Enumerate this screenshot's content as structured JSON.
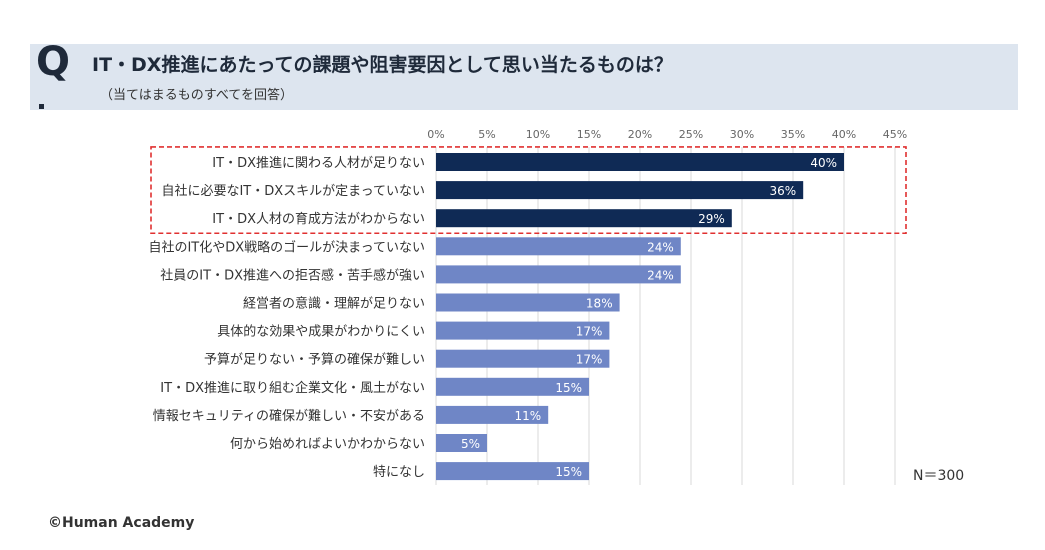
{
  "header": {
    "q_mark": "Q",
    "question": "IT・DX推進にあたっての課題や阻害要因として思い当たるものは？",
    "note": "（当てはまるものすべてを回答）"
  },
  "footer": {
    "sample_size": "N＝300",
    "copyright": "©Human Academy"
  },
  "colors": {
    "highlight_bar": "#0f2a55",
    "normal_bar": "#6f86c6",
    "highlight_border": "#e03030",
    "grid": "#d9d9d9"
  },
  "chart_data": {
    "type": "bar",
    "orientation": "horizontal",
    "title": "IT・DX推進にあたっての課題や阻害要因として思い当たるものは？",
    "xlabel": "",
    "ylabel": "",
    "xlim": [
      0,
      45
    ],
    "ticks": [
      0,
      5,
      10,
      15,
      20,
      25,
      30,
      35,
      40,
      45
    ],
    "tick_labels": [
      "0%",
      "5%",
      "10%",
      "15%",
      "20%",
      "25%",
      "30%",
      "35%",
      "40%",
      "45%"
    ],
    "categories": [
      "IT・DX推進に関わる人材が足りない",
      "自社に必要なIT・DXスキルが定まっていない",
      "IT・DX人材の育成方法がわからない",
      "自社のIT化やDX戦略のゴールが決まっていない",
      "社員のIT・DX推進への拒否感・苦手感が強い",
      "経営者の意識・理解が足りない",
      "具体的な効果や成果がわかりにくい",
      "予算が足りない・予算の確保が難しい",
      "IT・DX推進に取り組む企業文化・風土がない",
      "情報セキュリティの確保が難しい・不安がある",
      "何から始めればよいかわからない",
      "特になし"
    ],
    "values": [
      40,
      36,
      29,
      24,
      24,
      18,
      17,
      17,
      15,
      11,
      5,
      15
    ],
    "data_labels": [
      "40%",
      "36%",
      "29%",
      "24%",
      "24%",
      "18%",
      "17%",
      "17%",
      "15%",
      "11%",
      "5%",
      "15%"
    ],
    "highlighted_count": 3
  }
}
